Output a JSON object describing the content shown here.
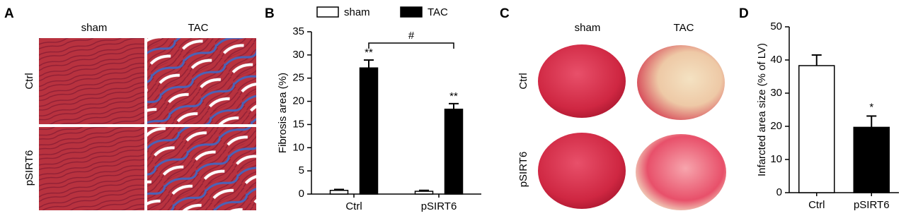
{
  "panels": {
    "letters": [
      "A",
      "B",
      "C",
      "D"
    ],
    "histology": {
      "columns": [
        "sham",
        "TAC"
      ],
      "rows": [
        "Ctrl",
        "pSIRT6"
      ]
    },
    "hearts": {
      "columns": [
        "sham",
        "TAC"
      ],
      "rows": [
        "Ctrl",
        "pSIRT6"
      ]
    }
  },
  "chart_data": [
    {
      "type": "bar",
      "ylabel": "Fibrosis area (%)",
      "categories": [
        "Ctrl",
        "pSIRT6"
      ],
      "series": [
        {
          "name": "sham",
          "color": "#ffffff",
          "values": [
            0.8,
            0.6
          ],
          "errors": [
            0.2,
            0.2
          ]
        },
        {
          "name": "TAC",
          "color": "#000000",
          "values": [
            27.2,
            18.3
          ],
          "errors": [
            1.7,
            1.2
          ]
        }
      ],
      "annotations": [
        "**",
        "**",
        "#"
      ],
      "ylim": [
        0,
        35
      ],
      "yticks": [
        0,
        5,
        10,
        15,
        20,
        25,
        30,
        35
      ],
      "legend": "top"
    },
    {
      "type": "bar",
      "ylabel": "Infarcted area size (% of LV)",
      "categories": [
        "Ctrl",
        "pSIRT6"
      ],
      "values": [
        38.3,
        19.7
      ],
      "errors": [
        3.2,
        3.4
      ],
      "colors": [
        "#ffffff",
        "#000000"
      ],
      "annotations": [
        "*"
      ],
      "ylim": [
        0,
        50
      ],
      "yticks": [
        0,
        10,
        20,
        30,
        40,
        50
      ]
    }
  ]
}
